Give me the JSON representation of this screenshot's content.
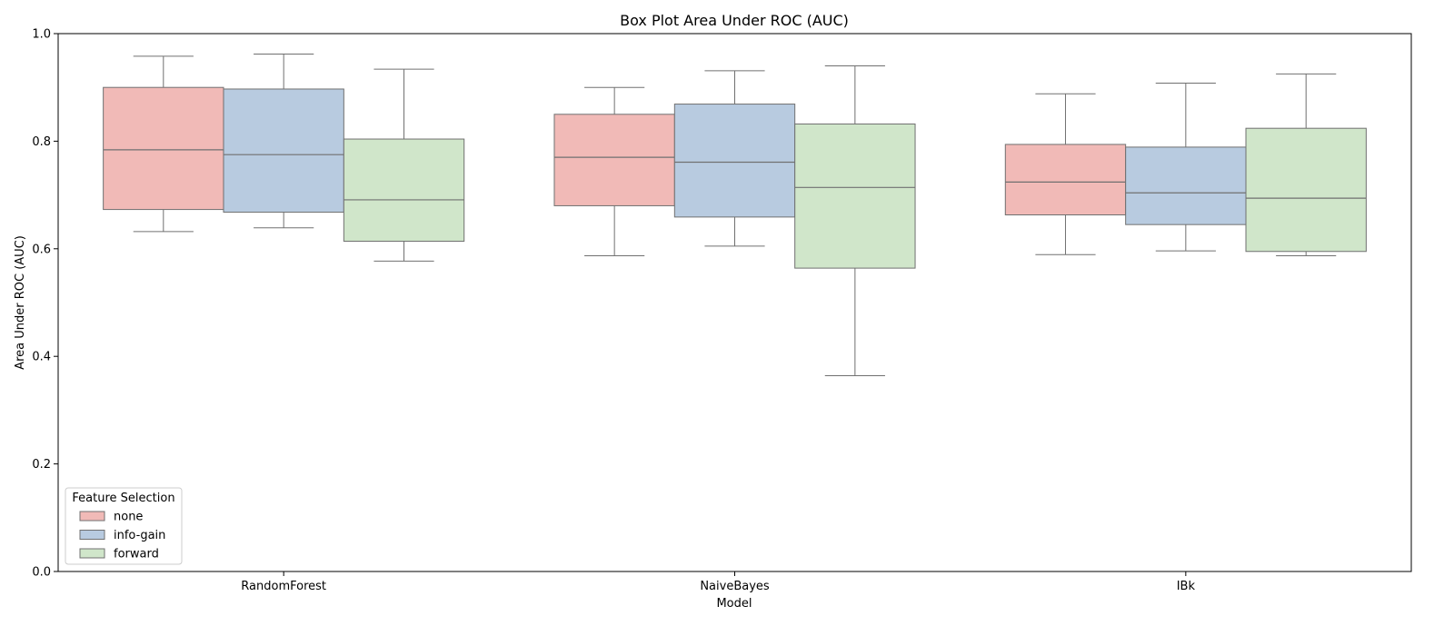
{
  "chart_data": {
    "type": "box",
    "title": "Box Plot Area Under ROC (AUC)",
    "xlabel": "Model",
    "ylabel": "Area Under ROC (AUC)",
    "ylim": [
      0.0,
      1.0
    ],
    "yticks": [
      "0.0",
      "0.2",
      "0.4",
      "0.6",
      "0.8",
      "1.0"
    ],
    "categories": [
      "RandomForest",
      "NaiveBayes",
      "IBk"
    ],
    "grid": false,
    "legend": {
      "title": "Feature Selection",
      "placement": "lower-left"
    },
    "series": [
      {
        "name": "none",
        "color": "#f1bab7",
        "boxes": [
          {
            "whisker_low": 0.632,
            "q1": 0.673,
            "median": 0.784,
            "q3": 0.9,
            "whisker_high": 0.958
          },
          {
            "whisker_low": 0.587,
            "q1": 0.68,
            "median": 0.77,
            "q3": 0.85,
            "whisker_high": 0.9
          },
          {
            "whisker_low": 0.589,
            "q1": 0.663,
            "median": 0.724,
            "q3": 0.794,
            "whisker_high": 0.888
          }
        ]
      },
      {
        "name": "info-gain",
        "color": "#b8cbe0",
        "boxes": [
          {
            "whisker_low": 0.639,
            "q1": 0.668,
            "median": 0.775,
            "q3": 0.897,
            "whisker_high": 0.962
          },
          {
            "whisker_low": 0.605,
            "q1": 0.659,
            "median": 0.761,
            "q3": 0.869,
            "whisker_high": 0.931
          },
          {
            "whisker_low": 0.596,
            "q1": 0.645,
            "median": 0.704,
            "q3": 0.789,
            "whisker_high": 0.908
          }
        ]
      },
      {
        "name": "forward",
        "color": "#d0e6ca",
        "boxes": [
          {
            "whisker_low": 0.577,
            "q1": 0.614,
            "median": 0.691,
            "q3": 0.804,
            "whisker_high": 0.934
          },
          {
            "whisker_low": 0.364,
            "q1": 0.564,
            "median": 0.714,
            "q3": 0.832,
            "whisker_high": 0.94
          },
          {
            "whisker_low": 0.587,
            "q1": 0.595,
            "median": 0.694,
            "q3": 0.824,
            "whisker_high": 0.925
          }
        ]
      }
    ]
  }
}
